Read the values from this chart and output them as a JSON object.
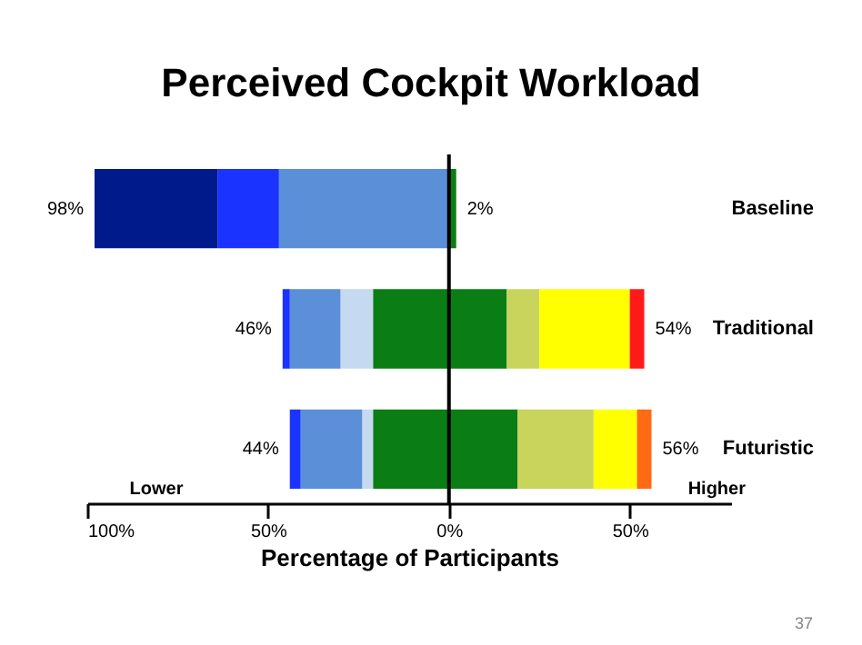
{
  "chart_data": {
    "type": "bar",
    "title": "Perceived Cockpit Workload",
    "xlabel": "Percentage of Participants",
    "orientation": "horizontal",
    "stacked": true,
    "categories": [
      "Baseline",
      "Traditional",
      "Futuristic"
    ],
    "series": [
      {
        "color": "#0a7d14",
        "values": [
          null,
          -21,
          -21
        ]
      },
      {
        "color": "#c5d9f1",
        "values": [
          null,
          -9,
          -3
        ]
      },
      {
        "color": "#5b8fd8",
        "values": [
          -47,
          -14,
          -17
        ]
      },
      {
        "color": "#1a33ff",
        "values": [
          -17,
          -2,
          -3
        ]
      },
      {
        "color": "#001a8c",
        "values": [
          -34,
          null,
          null
        ]
      },
      {
        "color": "#0a7d14",
        "values": [
          2,
          16,
          19
        ]
      },
      {
        "color": "#c9d45c",
        "values": [
          null,
          9,
          21
        ]
      },
      {
        "color": "#ffff00",
        "values": [
          null,
          25,
          12
        ]
      },
      {
        "color": "#ff1a1a",
        "values": [
          null,
          4,
          null
        ]
      },
      {
        "color": "#ff6a13",
        "values": [
          null,
          null,
          4
        ]
      }
    ],
    "xlim": [
      -100,
      78
    ],
    "xticks": [
      {
        "value": -100,
        "label": "100%"
      },
      {
        "value": -50,
        "label": "50%"
      },
      {
        "value": 0,
        "label": "0%"
      },
      {
        "value": 50,
        "label": "50%"
      }
    ],
    "ref_lines": [
      {
        "axis": "x",
        "value": 0,
        "color": "#000000"
      }
    ],
    "annotations": [
      {
        "text": "98%",
        "x": -98,
        "y": "Baseline"
      },
      {
        "text": "2%",
        "x": 2,
        "y": "Baseline"
      },
      {
        "text": "46%",
        "x": -46,
        "y": "Traditional"
      },
      {
        "text": "54%",
        "x": 54,
        "y": "Traditional"
      },
      {
        "text": "44%",
        "x": -44,
        "y": "Futuristic"
      },
      {
        "text": "56%",
        "x": 56,
        "y": "Futuristic"
      },
      "Lower",
      "Higher",
      "37"
    ]
  }
}
